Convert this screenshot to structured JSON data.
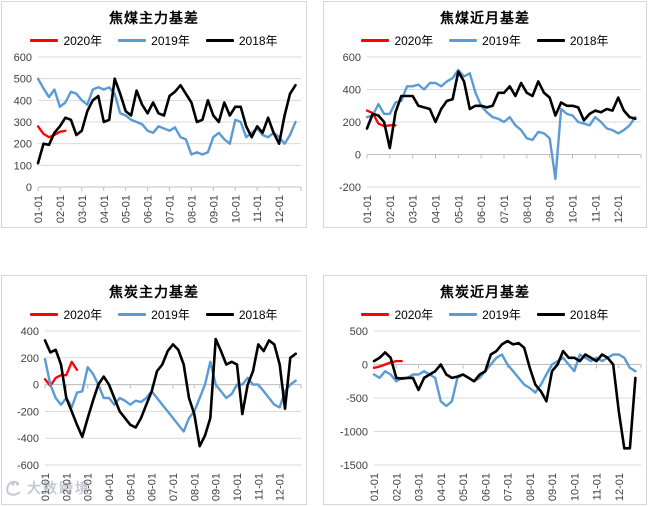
{
  "page": {
    "background": "#FFFFFF"
  },
  "watermark": {
    "text": "大数跨境"
  },
  "legend": {
    "position": "top",
    "entries": [
      "2020年",
      "2019年",
      "2018年"
    ]
  },
  "colors": {
    "y2020": "#FF0000",
    "y2019": "#5B9BD5",
    "y2018": "#000000",
    "gridline": "#D9D9D9",
    "axis": "#BFBFBF"
  },
  "chart_data": [
    {
      "type": "line",
      "title": "焦煤主力基差",
      "ylim": [
        0,
        600
      ],
      "ytick_step": 100,
      "ytick_labels": [
        "600",
        "500",
        "400",
        "300",
        "200",
        "100",
        "0"
      ],
      "x_tick_labels": [
        "01-01",
        "02-01",
        "03-01",
        "04-01",
        "05-01",
        "06-01",
        "07-01",
        "08-01",
        "09-01",
        "10-01",
        "11-01",
        "12-01"
      ],
      "points_per_month": 4,
      "grid": "horizontal",
      "series": [
        {
          "name": "2020年",
          "color": "#FF0000",
          "values": [
            280,
            245,
            230,
            240,
            255,
            260
          ]
        },
        {
          "name": "2019年",
          "color": "#5B9BD5",
          "values": [
            500,
            455,
            415,
            450,
            370,
            390,
            440,
            430,
            400,
            380,
            450,
            460,
            450,
            460,
            430,
            340,
            330,
            310,
            300,
            290,
            260,
            250,
            280,
            270,
            260,
            275,
            230,
            220,
            150,
            160,
            150,
            160,
            230,
            250,
            220,
            200,
            310,
            300,
            230,
            250,
            270,
            240,
            230,
            250,
            230,
            200,
            240,
            300
          ]
        },
        {
          "name": "2018年",
          "color": "#000000",
          "values": [
            110,
            200,
            195,
            250,
            280,
            320,
            310,
            240,
            260,
            350,
            400,
            420,
            300,
            310,
            500,
            430,
            350,
            330,
            445,
            380,
            340,
            390,
            340,
            330,
            420,
            440,
            470,
            430,
            390,
            300,
            310,
            400,
            330,
            300,
            390,
            330,
            370,
            370,
            280,
            230,
            280,
            250,
            320,
            250,
            200,
            330,
            430,
            470
          ]
        }
      ]
    },
    {
      "type": "line",
      "title": "焦煤近月基差",
      "ylim": [
        -200,
        600
      ],
      "ytick_step": 200,
      "ytick_labels": [
        "600",
        "400",
        "200",
        "0",
        "-200"
      ],
      "x_tick_labels": [
        "01-01",
        "02-01",
        "03-01",
        "04-01",
        "05-01",
        "06-01",
        "07-01",
        "08-01",
        "09-01",
        "10-01",
        "11-01",
        "12-01"
      ],
      "points_per_month": 4,
      "grid": "horizontal",
      "series": [
        {
          "name": "2020年",
          "color": "#FF0000",
          "values": [
            270,
            255,
            190,
            175,
            180,
            180
          ]
        },
        {
          "name": "2019年",
          "color": "#5B9BD5",
          "values": [
            230,
            240,
            310,
            250,
            250,
            320,
            330,
            420,
            420,
            430,
            400,
            440,
            440,
            420,
            450,
            470,
            520,
            480,
            500,
            380,
            300,
            260,
            230,
            220,
            200,
            230,
            180,
            150,
            100,
            90,
            140,
            130,
            100,
            -150,
            280,
            250,
            240,
            200,
            190,
            180,
            230,
            200,
            160,
            150,
            130,
            150,
            180,
            230
          ]
        },
        {
          "name": "2018年",
          "color": "#000000",
          "values": [
            160,
            250,
            240,
            200,
            40,
            260,
            360,
            360,
            360,
            300,
            290,
            280,
            200,
            280,
            330,
            340,
            510,
            450,
            280,
            300,
            300,
            290,
            300,
            380,
            380,
            420,
            360,
            440,
            380,
            360,
            450,
            380,
            350,
            240,
            320,
            300,
            300,
            290,
            210,
            250,
            270,
            260,
            280,
            270,
            350,
            270,
            230,
            220
          ]
        }
      ]
    },
    {
      "type": "line",
      "title": "焦炭主力基差",
      "ylim": [
        -600,
        400
      ],
      "ytick_step": 200,
      "ytick_labels": [
        "400",
        "200",
        "0",
        "-200",
        "-400",
        "-600"
      ],
      "x_tick_labels": [
        "01-01",
        "02-01",
        "03-01",
        "04-01",
        "05-01",
        "06-01",
        "07-01",
        "08-01",
        "09-01",
        "10-01",
        "11-01",
        "12-01"
      ],
      "points_per_month": 4,
      "grid": "horizontal",
      "series": [
        {
          "name": "2020年",
          "color": "#FF0000",
          "values": [
            40,
            -10,
            50,
            70,
            70,
            170,
            110
          ]
        },
        {
          "name": "2019年",
          "color": "#5B9BD5",
          "values": [
            190,
            0,
            -100,
            -150,
            -100,
            -170,
            -60,
            -50,
            130,
            80,
            0,
            -100,
            -100,
            -150,
            -100,
            -120,
            -150,
            -120,
            -130,
            -100,
            -50,
            -100,
            -150,
            -200,
            -250,
            -300,
            -350,
            -250,
            -200,
            -100,
            0,
            170,
            0,
            -50,
            -100,
            -70,
            0,
            0,
            50,
            0,
            0,
            -50,
            -100,
            -150,
            -170,
            -50,
            0,
            30
          ]
        },
        {
          "name": "2018年",
          "color": "#000000",
          "values": [
            330,
            240,
            260,
            150,
            -100,
            -200,
            -300,
            -390,
            -250,
            -120,
            0,
            60,
            0,
            -100,
            -200,
            -250,
            -300,
            -320,
            -250,
            -150,
            -50,
            100,
            150,
            250,
            300,
            260,
            150,
            -100,
            -220,
            -460,
            -380,
            -250,
            340,
            250,
            150,
            170,
            150,
            -220,
            0,
            100,
            300,
            250,
            330,
            300,
            150,
            -180,
            200,
            230
          ]
        }
      ]
    },
    {
      "type": "line",
      "title": "焦炭近月基差",
      "ylim": [
        -1500,
        500
      ],
      "ytick_step": 500,
      "ytick_labels": [
        "500",
        "0",
        "-500",
        "-1000",
        "-1500"
      ],
      "x_tick_labels": [
        "01-01",
        "02-01",
        "03-01",
        "04-01",
        "05-01",
        "06-01",
        "07-01",
        "08-01",
        "09-01",
        "10-01",
        "11-01",
        "12-01"
      ],
      "points_per_month": 4,
      "grid": "horizontal",
      "series": [
        {
          "name": "2020年",
          "color": "#FF0000",
          "values": [
            -50,
            -30,
            0,
            30,
            50,
            50
          ]
        },
        {
          "name": "2019年",
          "color": "#5B9BD5",
          "values": [
            -150,
            -200,
            -100,
            -150,
            -250,
            -200,
            -200,
            -150,
            -150,
            -100,
            -150,
            -200,
            -550,
            -620,
            -550,
            -200,
            -150,
            -200,
            -250,
            -200,
            -100,
            0,
            100,
            150,
            0,
            -100,
            -200,
            -300,
            -350,
            -420,
            -300,
            -150,
            0,
            50,
            100,
            0,
            -100,
            150,
            100,
            50,
            100,
            50,
            100,
            150,
            150,
            100,
            -50,
            -100
          ]
        },
        {
          "name": "2018年",
          "color": "#000000",
          "values": [
            50,
            100,
            180,
            100,
            -200,
            -210,
            -200,
            -200,
            -380,
            -200,
            -150,
            -100,
            0,
            -150,
            -200,
            -180,
            -150,
            -200,
            -250,
            -150,
            -100,
            150,
            200,
            300,
            350,
            300,
            320,
            250,
            -50,
            -300,
            -400,
            -550,
            -100,
            0,
            200,
            100,
            100,
            50,
            150,
            100,
            50,
            150,
            100,
            0,
            -700,
            -1250,
            -1250,
            -200
          ]
        }
      ]
    }
  ]
}
